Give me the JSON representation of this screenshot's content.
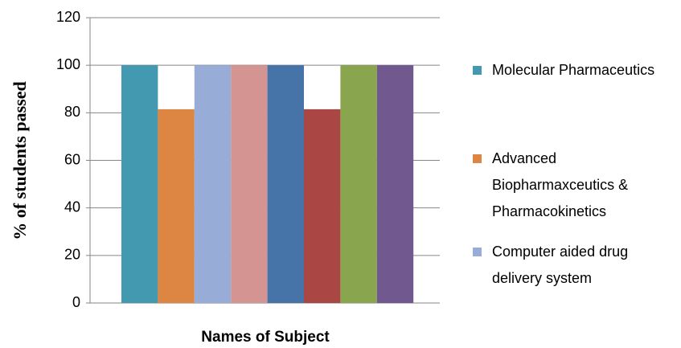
{
  "chart_data": {
    "type": "bar",
    "y_label": "% of students passed",
    "x_label": "Names of Subject",
    "categories": [
      null
    ],
    "series": [
      {
        "name": "Molecular Pharmaceutics",
        "color": "#4299b0",
        "values": [
          100
        ]
      },
      {
        "name": "Advanced Biopharmaxceutics & Pharmacokinetics",
        "color": "#dd8542",
        "values": [
          81.5
        ]
      },
      {
        "name": "Computer aided drug delivery system",
        "color": "#97acd6",
        "values": [
          100
        ]
      },
      {
        "color": "#d49592",
        "values": [
          100
        ]
      },
      {
        "color": "#4673a8",
        "values": [
          100
        ]
      },
      {
        "color": "#aa4644",
        "values": [
          81.5
        ]
      },
      {
        "color": "#89a64e",
        "values": [
          100
        ]
      },
      {
        "color": "#71588f",
        "values": [
          100
        ]
      }
    ],
    "ylim": [
      0,
      120
    ],
    "yticks": [
      0,
      20,
      40,
      60,
      80,
      100,
      120
    ],
    "grid": true,
    "legend": "right"
  }
}
